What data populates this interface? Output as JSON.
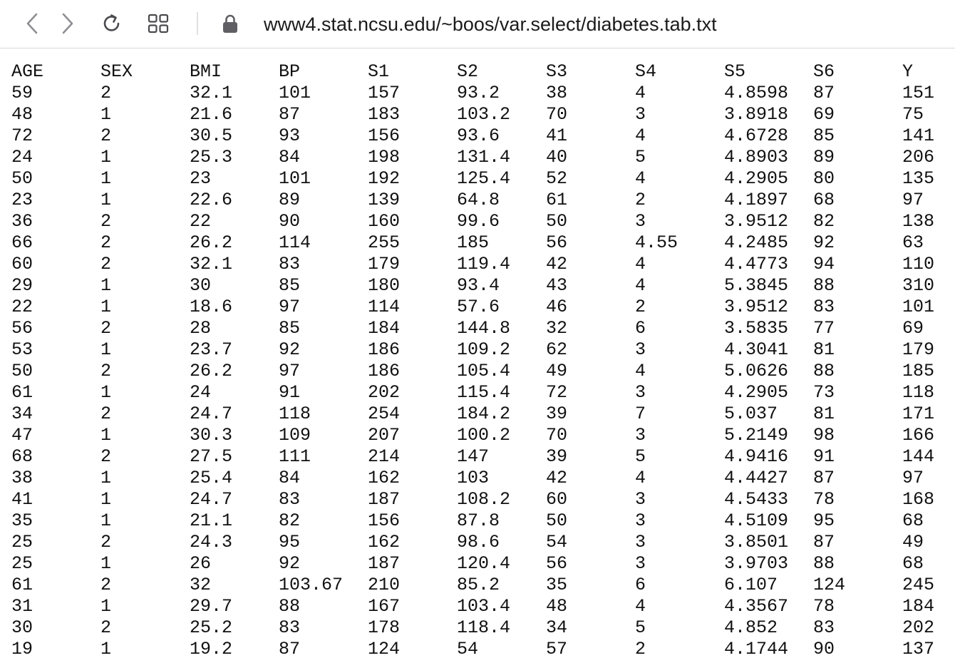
{
  "browser": {
    "url": "www4.stat.ncsu.edu/~boos/var.select/diabetes.tab.txt",
    "icons": {
      "back": "chevron-left-icon",
      "forward": "chevron-right-icon",
      "reload": "reload-icon",
      "tabs": "grid-icon",
      "security": "lock-icon"
    },
    "colors": {
      "icon": "#8e8e93",
      "lock": "#5f5f64",
      "text": "#111111"
    }
  },
  "table": {
    "headers": [
      "AGE",
      "SEX",
      "BMI",
      "BP",
      "S1",
      "S2",
      "S3",
      "S4",
      "S5",
      "S6",
      "Y"
    ],
    "rows": [
      [
        "59",
        "2",
        "32.1",
        "101",
        "157",
        "93.2",
        "38",
        "4",
        "4.8598",
        "87",
        "151"
      ],
      [
        "48",
        "1",
        "21.6",
        "87",
        "183",
        "103.2",
        "70",
        "3",
        "3.8918",
        "69",
        "75"
      ],
      [
        "72",
        "2",
        "30.5",
        "93",
        "156",
        "93.6",
        "41",
        "4",
        "4.6728",
        "85",
        "141"
      ],
      [
        "24",
        "1",
        "25.3",
        "84",
        "198",
        "131.4",
        "40",
        "5",
        "4.8903",
        "89",
        "206"
      ],
      [
        "50",
        "1",
        "23",
        "101",
        "192",
        "125.4",
        "52",
        "4",
        "4.2905",
        "80",
        "135"
      ],
      [
        "23",
        "1",
        "22.6",
        "89",
        "139",
        "64.8",
        "61",
        "2",
        "4.1897",
        "68",
        "97"
      ],
      [
        "36",
        "2",
        "22",
        "90",
        "160",
        "99.6",
        "50",
        "3",
        "3.9512",
        "82",
        "138"
      ],
      [
        "66",
        "2",
        "26.2",
        "114",
        "255",
        "185",
        "56",
        "4.55",
        "4.2485",
        "92",
        "63"
      ],
      [
        "60",
        "2",
        "32.1",
        "83",
        "179",
        "119.4",
        "42",
        "4",
        "4.4773",
        "94",
        "110"
      ],
      [
        "29",
        "1",
        "30",
        "85",
        "180",
        "93.4",
        "43",
        "4",
        "5.3845",
        "88",
        "310"
      ],
      [
        "22",
        "1",
        "18.6",
        "97",
        "114",
        "57.6",
        "46",
        "2",
        "3.9512",
        "83",
        "101"
      ],
      [
        "56",
        "2",
        "28",
        "85",
        "184",
        "144.8",
        "32",
        "6",
        "3.5835",
        "77",
        "69"
      ],
      [
        "53",
        "1",
        "23.7",
        "92",
        "186",
        "109.2",
        "62",
        "3",
        "4.3041",
        "81",
        "179"
      ],
      [
        "50",
        "2",
        "26.2",
        "97",
        "186",
        "105.4",
        "49",
        "4",
        "5.0626",
        "88",
        "185"
      ],
      [
        "61",
        "1",
        "24",
        "91",
        "202",
        "115.4",
        "72",
        "3",
        "4.2905",
        "73",
        "118"
      ],
      [
        "34",
        "2",
        "24.7",
        "118",
        "254",
        "184.2",
        "39",
        "7",
        "5.037",
        "81",
        "171"
      ],
      [
        "47",
        "1",
        "30.3",
        "109",
        "207",
        "100.2",
        "70",
        "3",
        "5.2149",
        "98",
        "166"
      ],
      [
        "68",
        "2",
        "27.5",
        "111",
        "214",
        "147",
        "39",
        "5",
        "4.9416",
        "91",
        "144"
      ],
      [
        "38",
        "1",
        "25.4",
        "84",
        "162",
        "103",
        "42",
        "4",
        "4.4427",
        "87",
        "97"
      ],
      [
        "41",
        "1",
        "24.7",
        "83",
        "187",
        "108.2",
        "60",
        "3",
        "4.5433",
        "78",
        "168"
      ],
      [
        "35",
        "1",
        "21.1",
        "82",
        "156",
        "87.8",
        "50",
        "3",
        "4.5109",
        "95",
        "68"
      ],
      [
        "25",
        "2",
        "24.3",
        "95",
        "162",
        "98.6",
        "54",
        "3",
        "3.8501",
        "87",
        "49"
      ],
      [
        "25",
        "1",
        "26",
        "92",
        "187",
        "120.4",
        "56",
        "3",
        "3.9703",
        "88",
        "68"
      ],
      [
        "61",
        "2",
        "32",
        "103.67",
        "210",
        "85.2",
        "35",
        "6",
        "6.107",
        "124",
        "245"
      ],
      [
        "31",
        "1",
        "29.7",
        "88",
        "167",
        "103.4",
        "48",
        "4",
        "4.3567",
        "78",
        "184"
      ],
      [
        "30",
        "2",
        "25.2",
        "83",
        "178",
        "118.4",
        "34",
        "5",
        "4.852",
        "83",
        "202"
      ],
      [
        "19",
        "1",
        "19.2",
        "87",
        "124",
        "54",
        "57",
        "2",
        "4.1744",
        "90",
        "137"
      ]
    ]
  }
}
